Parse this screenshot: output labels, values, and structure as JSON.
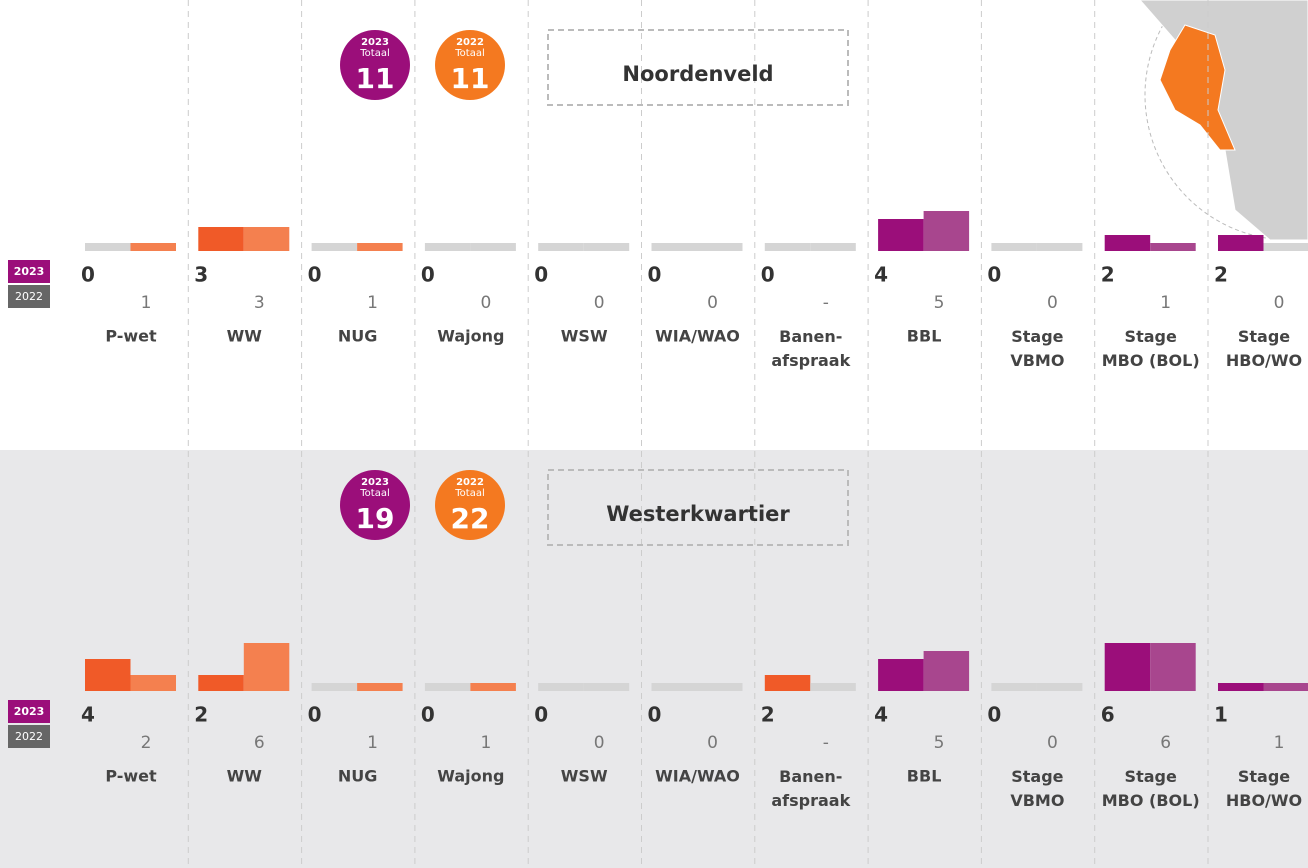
{
  "chart_data": [
    {
      "type": "bar",
      "title": "Noordenveld",
      "total_label": "Totaal",
      "categories": [
        "P-wet",
        "WW",
        "NUG",
        "Wajong",
        "WSW",
        "WIA/WAO",
        "Banen-\nafspraak",
        "BBL",
        "Stage\nVBMO",
        "Stage\nMBO (BOL)",
        "Stage\nHBO/WO"
      ],
      "zero_color": "#d5d5d5",
      "series": [
        {
          "name": "2023",
          "total": 11,
          "color": "#9b0e7a",
          "colors": [
            "#f05a28",
            "#f05a28",
            "#f05a28",
            "#f05a28",
            "#f05a28",
            "#f05a28",
            "#f05a28",
            "#9b0e7a",
            "#9b0e7a",
            "#9b0e7a",
            "#9b0e7a"
          ],
          "values": [
            0,
            3,
            0,
            0,
            0,
            0,
            0,
            4,
            0,
            2,
            2
          ]
        },
        {
          "name": "2022",
          "total": 11,
          "color": "#f47920",
          "colors": [
            "#f4804f",
            "#f4804f",
            "#f4804f",
            "#f4804f",
            "#f4804f",
            "#f4804f",
            "#f4804f",
            "#a8468e",
            "#a8468e",
            "#a8468e",
            "#a8468e"
          ],
          "values": [
            1,
            3,
            1,
            0,
            0,
            0,
            null,
            5,
            0,
            1,
            0
          ],
          "value_labels": [
            "1",
            "3",
            "1",
            "0",
            "0",
            "0",
            "-",
            "5",
            "0",
            "1",
            "0"
          ]
        }
      ]
    },
    {
      "type": "bar",
      "title": "Westerkwartier",
      "total_label": "Totaal",
      "categories": [
        "P-wet",
        "WW",
        "NUG",
        "Wajong",
        "WSW",
        "WIA/WAO",
        "Banen-\nafspraak",
        "BBL",
        "Stage\nVBMO",
        "Stage\nMBO (BOL)",
        "Stage\nHBO/WO"
      ],
      "zero_color": "#d5d5d5",
      "series": [
        {
          "name": "2023",
          "total": 19,
          "color": "#9b0e7a",
          "colors": [
            "#f05a28",
            "#f05a28",
            "#f05a28",
            "#f05a28",
            "#f05a28",
            "#f05a28",
            "#f05a28",
            "#9b0e7a",
            "#9b0e7a",
            "#9b0e7a",
            "#9b0e7a"
          ],
          "values": [
            4,
            2,
            0,
            0,
            0,
            0,
            2,
            4,
            0,
            6,
            1
          ]
        },
        {
          "name": "2022",
          "total": 22,
          "color": "#f47920",
          "colors": [
            "#f4804f",
            "#f4804f",
            "#f4804f",
            "#f4804f",
            "#f4804f",
            "#f4804f",
            "#f4804f",
            "#a8468e",
            "#a8468e",
            "#a8468e",
            "#a8468e"
          ],
          "values": [
            2,
            6,
            1,
            1,
            0,
            0,
            null,
            5,
            0,
            6,
            1
          ],
          "value_labels": [
            "2",
            "6",
            "1",
            "1",
            "0",
            "0",
            "-",
            "5",
            "0",
            "6",
            "1"
          ]
        }
      ]
    }
  ]
}
